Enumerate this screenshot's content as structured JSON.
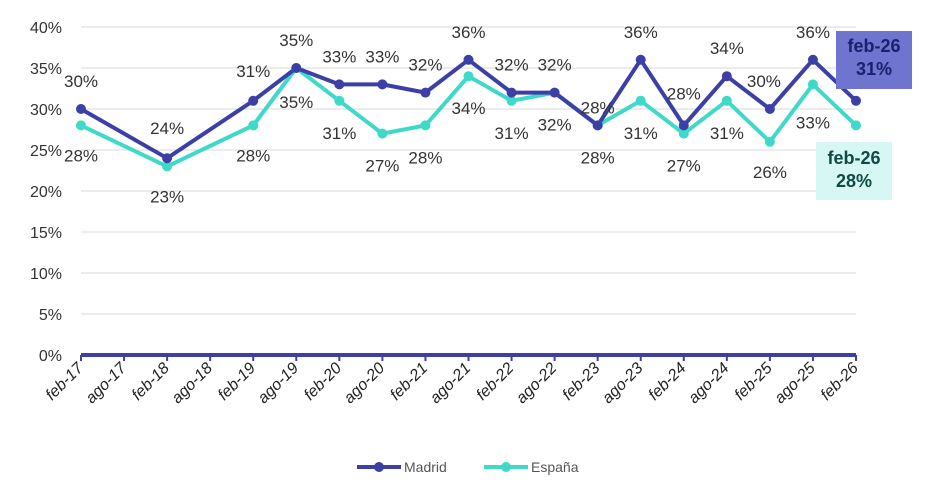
{
  "chart_data": {
    "type": "line",
    "categories": [
      "feb-17",
      "ago-17",
      "feb-18",
      "ago-18",
      "feb-19",
      "ago-19",
      "feb-20",
      "ago-20",
      "feb-21",
      "ago-21",
      "feb-22",
      "ago-22",
      "feb-23",
      "ago-23",
      "feb-24",
      "ago-24",
      "feb-25",
      "ago-25",
      "feb-26"
    ],
    "x_tick_labels": [
      "feb-17",
      "ago-17",
      "feb-18",
      "ago-18",
      "feb-19",
      "ago-19",
      "feb-20",
      "ago-20",
      "feb-21",
      "ago-21",
      "feb-22",
      "ago-22",
      "feb-23",
      "ago-23",
      "feb-24",
      "ago-24",
      "feb-25",
      "ago-25",
      "feb-26"
    ],
    "y_tick_labels": [
      "0%",
      "5%",
      "10%",
      "15%",
      "20%",
      "25%",
      "30%",
      "35%",
      "40%"
    ],
    "ylim": [
      0,
      40
    ],
    "grid": true,
    "legend_position": "bottom",
    "colors": {
      "Madrid": "#3b3fa6",
      "España": "#3fd9c9",
      "axis": "#3b3fa6"
    },
    "series": [
      {
        "name": "Madrid",
        "values": [
          30,
          null,
          24,
          null,
          31,
          35,
          33,
          33,
          32,
          36,
          32,
          32,
          28,
          36,
          28,
          34,
          30,
          36,
          31
        ],
        "labels": [
          "30%",
          "",
          "24%",
          "",
          "31%",
          "35%",
          "33%",
          "33%",
          "32%",
          "36%",
          "32%",
          "32%",
          "28%",
          "36%",
          "28%",
          "34%",
          "30%",
          "36%",
          ""
        ]
      },
      {
        "name": "España",
        "values": [
          28,
          null,
          23,
          null,
          28,
          35,
          31,
          27,
          28,
          34,
          31,
          32,
          28,
          31,
          27,
          31,
          26,
          33,
          28
        ],
        "labels": [
          "28%",
          "",
          "23%",
          "",
          "28%",
          "35%",
          "31%",
          "27%",
          "28%",
          "34%",
          "31%",
          "32%",
          "28%",
          "31%",
          "27%",
          "31%",
          "26%",
          "33%",
          ""
        ]
      }
    ],
    "callouts": {
      "madrid": {
        "line1": "feb-26",
        "line2": "31%"
      },
      "espana": {
        "line1": "feb-26",
        "line2": "28%"
      }
    }
  }
}
